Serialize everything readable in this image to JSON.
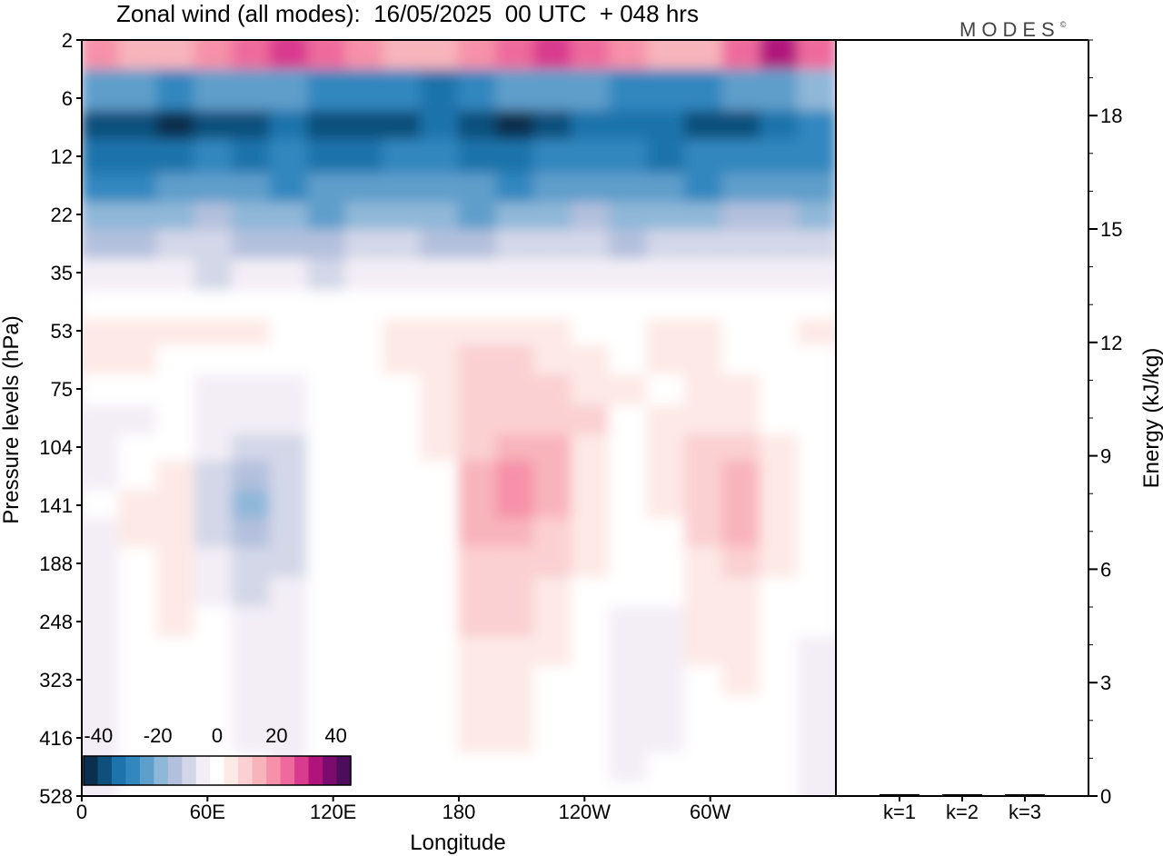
{
  "figure": {
    "title": "Zonal wind (all modes):  16/05/2025  00 UTC  + 048 hrs",
    "brand": "MODES",
    "brand_mark": "©"
  },
  "chart_data": [
    {
      "type": "heatmap",
      "title": "Zonal wind (all modes):  16/05/2025  00 UTC  + 048 hrs",
      "xlabel": "Longitude",
      "ylabel": "Pressure levels (hPa)",
      "x_ticks": [
        "0",
        "60E",
        "120E",
        "180",
        "120W",
        "60W"
      ],
      "x_tick_positions_deg_east": [
        0,
        60,
        120,
        180,
        240,
        300
      ],
      "xlim_deg_east": [
        0,
        360
      ],
      "y_ticks": [
        "2",
        "6",
        "12",
        "22",
        "35",
        "53",
        "75",
        "104",
        "141",
        "188",
        "248",
        "323",
        "416",
        "528"
      ],
      "y_order": "top-to-bottom",
      "colorbar": {
        "ticks": [
          "-40",
          "-20",
          "0",
          "20",
          "40"
        ],
        "range": [
          -45,
          45
        ],
        "step": 5,
        "colors": [
          "#0b2f4e",
          "#0f4f7c",
          "#1d73ab",
          "#3387bf",
          "#5e9ecb",
          "#8fb7d8",
          "#b3c0dd",
          "#d3d7e8",
          "#f3eef6",
          "#ffffff",
          "#fde9e6",
          "#fbd0d2",
          "#f8b4bb",
          "#f691a9",
          "#ee6a9c",
          "#d93b8e",
          "#b0137c",
          "#7c0b6e",
          "#4b0d5c"
        ]
      },
      "field_rows": [
        {
          "level": "2",
          "cells": [
            20,
            15,
            15,
            20,
            25,
            30,
            25,
            20,
            15,
            15,
            20,
            25,
            30,
            25,
            20,
            15,
            15,
            25,
            35,
            25
          ]
        },
        {
          "level": "6",
          "cells": [
            -25,
            -25,
            -28,
            -25,
            -22,
            -25,
            -28,
            -30,
            -30,
            -32,
            -30,
            -25,
            -22,
            -25,
            -28,
            -30,
            -28,
            -25,
            -22,
            -20
          ]
        },
        {
          "level": "8",
          "cells": [
            -38,
            -40,
            -42,
            -40,
            -38,
            -35,
            -38,
            -40,
            -38,
            -35,
            -40,
            -42,
            -40,
            -35,
            -32,
            -35,
            -38,
            -40,
            -35,
            -30
          ]
        },
        {
          "level": "12",
          "cells": [
            -35,
            -35,
            -32,
            -30,
            -32,
            -28,
            -32,
            -35,
            -30,
            -30,
            -32,
            -35,
            -30,
            -28,
            -30,
            -32,
            -30,
            -28,
            -30,
            -30
          ]
        },
        {
          "level": "17",
          "cells": [
            -28,
            -30,
            -25,
            -22,
            -25,
            -28,
            -22,
            -25,
            -25,
            -22,
            -25,
            -28,
            -25,
            -22,
            -22,
            -25,
            -28,
            -22,
            -22,
            -25
          ]
        },
        {
          "level": "22",
          "cells": [
            -20,
            -18,
            -18,
            -15,
            -18,
            -20,
            -22,
            -18,
            -18,
            -20,
            -22,
            -20,
            -18,
            -15,
            -18,
            -20,
            -18,
            -15,
            -15,
            -18
          ]
        },
        {
          "level": "28",
          "cells": [
            -12,
            -12,
            -10,
            -10,
            -12,
            -12,
            -12,
            -10,
            -10,
            -12,
            -12,
            -10,
            -8,
            -10,
            -12,
            -10,
            -10,
            -8,
            -10,
            -10
          ]
        },
        {
          "level": "35",
          "cells": [
            -5,
            -5,
            -5,
            -8,
            -5,
            -5,
            -8,
            -5,
            -5,
            -5,
            -5,
            -5,
            -5,
            -5,
            -5,
            -5,
            -5,
            -5,
            -5,
            -5
          ]
        },
        {
          "level": "45",
          "cells": [
            2,
            2,
            2,
            3,
            2,
            2,
            2,
            2,
            2,
            2,
            2,
            2,
            2,
            2,
            2,
            2,
            2,
            3,
            2,
            2
          ]
        },
        {
          "level": "53",
          "cells": [
            8,
            6,
            6,
            8,
            6,
            4,
            2,
            4,
            6,
            8,
            8,
            6,
            8,
            4,
            4,
            8,
            6,
            4,
            4,
            6
          ]
        },
        {
          "level": "63",
          "cells": [
            6,
            6,
            3,
            3,
            3,
            2,
            2,
            4,
            6,
            8,
            10,
            10,
            8,
            6,
            4,
            5,
            6,
            4,
            4,
            4
          ]
        },
        {
          "level": "75",
          "cells": [
            3,
            3,
            1,
            -1,
            -4,
            -2,
            1,
            3,
            4,
            8,
            12,
            12,
            10,
            8,
            5,
            4,
            7,
            6,
            3,
            3
          ]
        },
        {
          "level": "90",
          "cells": [
            -2,
            -1,
            1,
            -2,
            -5,
            -4,
            1,
            1,
            3,
            6,
            12,
            13,
            12,
            10,
            3,
            6,
            9,
            8,
            4,
            3
          ]
        },
        {
          "level": "104",
          "cells": [
            -2,
            2,
            4,
            -3,
            -8,
            -7,
            2,
            1,
            3,
            5,
            14,
            18,
            17,
            9,
            4,
            6,
            11,
            10,
            5,
            3
          ]
        },
        {
          "level": "120",
          "cells": [
            -1,
            4,
            6,
            -6,
            -14,
            -8,
            1,
            1,
            3,
            4,
            15,
            20,
            18,
            8,
            4,
            5,
            13,
            16,
            6,
            3
          ]
        },
        {
          "level": "141",
          "cells": [
            0,
            5,
            8,
            -8,
            -18,
            -9,
            1,
            1,
            3,
            4,
            16,
            20,
            16,
            7,
            3,
            5,
            12,
            17,
            7,
            2
          ]
        },
        {
          "level": "160",
          "cells": [
            -1,
            5,
            8,
            -7,
            -15,
            -8,
            1,
            1,
            3,
            4,
            16,
            18,
            13,
            7,
            3,
            4,
            11,
            15,
            6,
            2
          ]
        },
        {
          "level": "188",
          "cells": [
            -1,
            4,
            7,
            -4,
            -10,
            -6,
            1,
            0,
            3,
            4,
            14,
            14,
            11,
            5,
            3,
            3,
            9,
            12,
            5,
            1
          ]
        },
        {
          "level": "215",
          "cells": [
            -1,
            3,
            7,
            -2,
            -6,
            -5,
            0,
            0,
            2,
            4,
            11,
            11,
            9,
            4,
            1,
            1,
            7,
            9,
            4,
            1
          ]
        },
        {
          "level": "248",
          "cells": [
            -2,
            2,
            6,
            0,
            -4,
            -4,
            0,
            0,
            2,
            4,
            10,
            10,
            7,
            3,
            -2,
            -1,
            6,
            7,
            3,
            0
          ]
        },
        {
          "level": "285",
          "cells": [
            -3,
            2,
            4,
            0,
            -3,
            -3,
            0,
            0,
            2,
            3,
            9,
            8,
            5,
            2,
            -4,
            -2,
            5,
            6,
            2,
            -1
          ]
        },
        {
          "level": "323",
          "cells": [
            -4,
            1,
            3,
            0,
            -2,
            -3,
            0,
            0,
            1,
            3,
            8,
            7,
            4,
            1,
            -4,
            -2,
            4,
            5,
            2,
            -2
          ]
        },
        {
          "level": "370",
          "cells": [
            -4,
            1,
            2,
            0,
            -1,
            -2,
            0,
            0,
            1,
            2,
            7,
            6,
            3,
            1,
            -3,
            -1,
            3,
            4,
            1,
            -3
          ]
        },
        {
          "level": "416",
          "cells": [
            -3,
            0,
            1,
            0,
            -1,
            -1,
            0,
            0,
            1,
            2,
            6,
            5,
            2,
            1,
            -2,
            -1,
            2,
            3,
            1,
            -3
          ]
        },
        {
          "level": "470",
          "cells": [
            -2,
            0,
            1,
            0,
            0,
            -1,
            0,
            0,
            1,
            1,
            4,
            3,
            2,
            1,
            -1,
            0,
            1,
            2,
            1,
            -2
          ]
        },
        {
          "level": "528",
          "cells": [
            -1,
            0,
            1,
            1,
            0,
            0,
            0,
            0,
            1,
            1,
            2,
            2,
            1,
            1,
            0,
            1,
            1,
            1,
            1,
            -1
          ]
        }
      ]
    },
    {
      "type": "bar",
      "ylabel": "Energy (kJ/kg)",
      "categories": [
        "k=1",
        "k=2",
        "k=3"
      ],
      "values": [
        0.05,
        0.04,
        0.03
      ],
      "ylim": [
        0,
        20
      ],
      "y_ticks": [
        "0",
        "3",
        "6",
        "9",
        "12",
        "15",
        "18"
      ],
      "y_tick_values": [
        0,
        3,
        6,
        9,
        12,
        15,
        18
      ]
    }
  ]
}
